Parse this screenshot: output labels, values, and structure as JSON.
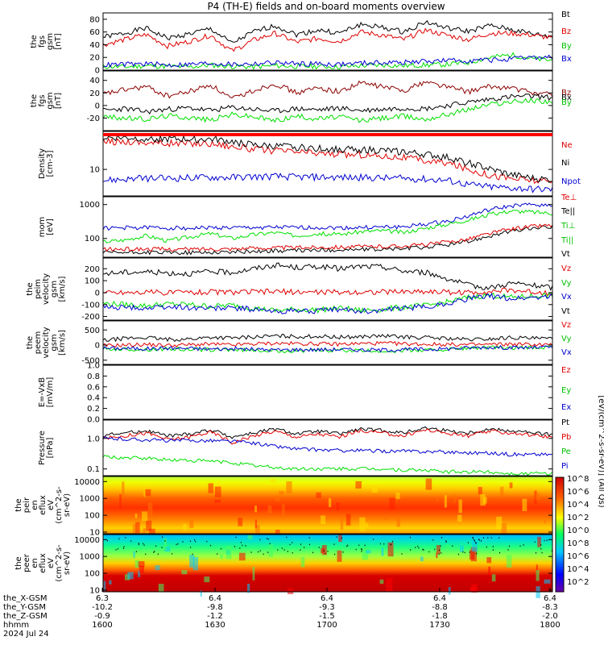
{
  "title": "P4 (TH-E) fields and on-board moments overview",
  "colors": {
    "black": "#000000",
    "red": "#e00000",
    "dark_red": "#8c0000",
    "green": "#00e000",
    "blue": "#0000d0"
  },
  "chart_data": [
    {
      "id": "bgsm",
      "type": "line",
      "ylabel": [
        "the",
        "fgs",
        "gsm",
        "[nT]"
      ],
      "ylim": [
        0,
        90
      ],
      "yticks": [
        "0",
        "20",
        "40",
        "60",
        "80"
      ],
      "legend": [
        "Bt",
        "Bz",
        "By",
        "Bx"
      ],
      "series": [
        {
          "name": "Bt",
          "color": "black",
          "values": [
            52,
            58,
            66,
            50,
            57,
            65,
            42,
            60,
            70,
            56,
            63,
            58,
            72,
            67,
            60,
            76,
            66,
            61,
            70,
            64,
            57,
            52
          ]
        },
        {
          "name": "Bz",
          "color": "red",
          "values": [
            40,
            48,
            56,
            38,
            45,
            55,
            30,
            47,
            58,
            44,
            50,
            45,
            60,
            55,
            48,
            63,
            55,
            48,
            58,
            58,
            55,
            50
          ]
        },
        {
          "name": "By",
          "color": "green",
          "values": [
            6,
            5,
            7,
            6,
            5,
            8,
            6,
            5,
            7,
            6,
            6,
            5,
            7,
            8,
            7,
            8,
            9,
            12,
            20,
            24,
            18,
            15
          ]
        },
        {
          "name": "Bx",
          "color": "blue",
          "values": [
            8,
            9,
            10,
            8,
            9,
            11,
            9,
            10,
            12,
            10,
            10,
            9,
            11,
            12,
            12,
            14,
            15,
            15,
            16,
            17,
            20,
            20
          ]
        }
      ]
    },
    {
      "id": "bgsm2",
      "type": "line",
      "ylabel": [
        "the",
        "fgs",
        "gsm",
        "[nT]"
      ],
      "ylim": [
        -40,
        55
      ],
      "yticks": [
        "-20",
        "0",
        "20",
        "40"
      ],
      "legend": [
        "Bz",
        "Bx",
        "By"
      ],
      "series": [
        {
          "name": "Bz",
          "color": "dark_red",
          "values": [
            18,
            25,
            30,
            15,
            22,
            33,
            10,
            24,
            35,
            20,
            28,
            22,
            36,
            30,
            24,
            38,
            30,
            22,
            30,
            28,
            20,
            18
          ]
        },
        {
          "name": "Bx",
          "color": "black",
          "values": [
            -8,
            -5,
            -10,
            -6,
            -4,
            -8,
            -3,
            -6,
            -9,
            -5,
            -7,
            -4,
            -8,
            -6,
            -4,
            -5,
            0,
            5,
            10,
            14,
            15,
            12
          ]
        },
        {
          "name": "By",
          "color": "green",
          "values": [
            -18,
            -20,
            -22,
            -16,
            -19,
            -23,
            -14,
            -18,
            -24,
            -17,
            -21,
            -18,
            -24,
            -20,
            -17,
            -22,
            -14,
            -6,
            2,
            6,
            8,
            6
          ]
        }
      ]
    },
    {
      "id": "density",
      "type": "line",
      "ylabel": [
        "Density",
        "[cm-3]"
      ],
      "yscale": "log",
      "ylim": [
        3.5,
        45
      ],
      "yticks": [
        "10"
      ],
      "legend": [
        "Ne",
        "Ni",
        "Npot"
      ],
      "series": [
        {
          "name": "Ne",
          "color": "red",
          "values": [
            30,
            30,
            29,
            28,
            28,
            28,
            25,
            22,
            21,
            20,
            19,
            18,
            18,
            17,
            16,
            14,
            13,
            10,
            8,
            7,
            6.5,
            6
          ]
        },
        {
          "name": "Ni",
          "color": "black",
          "values": [
            35,
            35,
            34,
            33,
            33,
            33,
            30,
            26,
            25,
            24,
            23,
            22,
            22,
            21,
            20,
            18,
            16,
            13,
            10,
            8,
            7,
            6.5
          ]
        },
        {
          "name": "Npot",
          "color": "blue",
          "values": [
            6.5,
            6.8,
            7,
            7,
            7.2,
            7.3,
            7.3,
            7.5,
            7.6,
            7.4,
            7.4,
            7.3,
            7.2,
            7.1,
            7,
            6.8,
            6.5,
            5.5,
            5,
            4.8,
            4.6,
            4.5
          ]
        }
      ]
    },
    {
      "id": "temp",
      "type": "line",
      "ylabel": [
        "mom",
        "[eV]"
      ],
      "yscale": "log",
      "ylim": [
        28,
        1700
      ],
      "yticks": [
        "100",
        "1000"
      ],
      "legend": [
        "Te⊥",
        "Te||",
        "Ti⊥",
        "Ti||"
      ],
      "series": [
        {
          "name": "Te⊥",
          "color": "blue",
          "values": [
            200,
            205,
            210,
            205,
            200,
            208,
            205,
            210,
            212,
            208,
            210,
            205,
            210,
            215,
            220,
            260,
            320,
            450,
            700,
            900,
            1000,
            950
          ]
        },
        {
          "name": "Te||",
          "color": "black",
          "values": [
            38,
            38,
            39,
            38,
            38,
            39,
            40,
            42,
            43,
            44,
            45,
            46,
            47,
            48,
            50,
            55,
            65,
            80,
            120,
            160,
            200,
            220
          ]
        },
        {
          "name": "Ti⊥",
          "color": "red",
          "values": [
            48,
            48,
            49,
            48,
            48,
            49,
            50,
            52,
            53,
            54,
            55,
            56,
            57,
            58,
            60,
            66,
            78,
            96,
            140,
            190,
            230,
            250
          ]
        },
        {
          "name": "Ti||",
          "color": "green",
          "values": [
            80,
            90,
            120,
            85,
            110,
            140,
            100,
            130,
            150,
            120,
            140,
            130,
            160,
            170,
            150,
            200,
            260,
            350,
            500,
            650,
            600,
            550
          ]
        }
      ]
    },
    {
      "id": "vel1",
      "type": "line",
      "ylabel": [
        "the",
        "peim",
        "velocity",
        "gsm",
        "[km/s]"
      ],
      "ylim": [
        -230,
        290
      ],
      "yticks": [
        "-200",
        "-100",
        "0",
        "100",
        "200"
      ],
      "legend": [
        "Vt",
        "Vz",
        "Vy",
        "Vx"
      ],
      "series": [
        {
          "name": "Vt",
          "color": "black",
          "values": [
            160,
            170,
            175,
            165,
            160,
            175,
            170,
            200,
            230,
            210,
            220,
            200,
            220,
            215,
            180,
            170,
            120,
            60,
            40,
            80,
            60,
            40
          ]
        },
        {
          "name": "Vz",
          "color": "red",
          "values": [
            0,
            2,
            5,
            0,
            4,
            6,
            3,
            5,
            8,
            6,
            4,
            3,
            6,
            5,
            8,
            10,
            5,
            0,
            10,
            20,
            5,
            0
          ]
        },
        {
          "name": "Vy",
          "color": "green",
          "values": [
            -90,
            -100,
            -110,
            -95,
            -100,
            -115,
            -105,
            -130,
            -150,
            -140,
            -145,
            -130,
            -150,
            -140,
            -120,
            -110,
            -80,
            -40,
            -20,
            -40,
            -30,
            -20
          ]
        },
        {
          "name": "Vx",
          "color": "blue",
          "values": [
            -120,
            -125,
            -130,
            -120,
            -125,
            -130,
            -128,
            -140,
            -160,
            -150,
            -155,
            -140,
            -155,
            -150,
            -130,
            -120,
            -90,
            -50,
            -30,
            -50,
            -40,
            -30
          ]
        }
      ]
    },
    {
      "id": "vel2",
      "type": "line",
      "ylabel": [
        "the",
        "peem",
        "velocity",
        "gsm",
        "[km/s]"
      ],
      "ylim": [
        -640,
        800
      ],
      "yticks": [
        "-500",
        "0",
        "500"
      ],
      "legend": [
        "Vt",
        "Vz",
        "Vy",
        "Vx"
      ],
      "series": [
        {
          "name": "Vt",
          "color": "black",
          "values": [
            150,
            220,
            250,
            180,
            200,
            260,
            230,
            270,
            300,
            280,
            290,
            260,
            280,
            300,
            270,
            250,
            220,
            180,
            200,
            250,
            220,
            200
          ]
        },
        {
          "name": "Vz",
          "color": "red",
          "values": [
            -20,
            0,
            20,
            -10,
            10,
            30,
            0,
            40,
            60,
            50,
            40,
            30,
            50,
            60,
            40,
            30,
            20,
            10,
            20,
            30,
            20,
            10
          ]
        },
        {
          "name": "Vy",
          "color": "green",
          "values": [
            -120,
            -140,
            -150,
            -130,
            -140,
            -160,
            -150,
            -170,
            -200,
            -180,
            -190,
            -170,
            -190,
            -200,
            -180,
            -170,
            -140,
            -100,
            -80,
            -100,
            -90,
            -80
          ]
        },
        {
          "name": "Vx",
          "color": "blue",
          "values": [
            -100,
            -110,
            -120,
            -100,
            -110,
            -130,
            -120,
            -140,
            -160,
            -150,
            -150,
            -140,
            -160,
            -160,
            -150,
            -140,
            -120,
            -90,
            -70,
            -90,
            -80,
            -70
          ]
        }
      ]
    },
    {
      "id": "efield",
      "type": "line",
      "ylabel": [
        "E=-VxB",
        "[mV/m]"
      ],
      "ylim": [
        0,
        1
      ],
      "yticks": [
        "0.0",
        "0.2",
        "0.4",
        "0.6",
        "0.8",
        "1.0"
      ],
      "legend": [
        "Ez",
        "Ey",
        "Ex"
      ],
      "series": []
    },
    {
      "id": "pressure",
      "type": "line",
      "ylabel": [
        "Pressure",
        "[nPa]"
      ],
      "yscale": "log",
      "ylim": [
        0.06,
        4
      ],
      "yticks": [
        "0.1",
        "1.0"
      ],
      "legend": [
        "Pt",
        "Pb",
        "Pe",
        "Pi"
      ],
      "series": [
        {
          "name": "Pt",
          "color": "black",
          "values": [
            1.3,
            1.5,
            1.8,
            1.2,
            1.4,
            1.9,
            1.1,
            1.5,
            2.0,
            1.4,
            1.7,
            1.4,
            2.0,
            1.8,
            1.5,
            2.2,
            1.8,
            1.5,
            2.0,
            1.8,
            1.5,
            1.3
          ]
        },
        {
          "name": "Pb",
          "color": "red",
          "values": [
            1.0,
            1.2,
            1.5,
            0.9,
            1.1,
            1.6,
            0.7,
            1.2,
            1.7,
            1.1,
            1.4,
            1.1,
            1.8,
            1.5,
            1.2,
            1.9,
            1.5,
            1.2,
            1.7,
            1.5,
            1.3,
            1.1
          ]
        },
        {
          "name": "Pe",
          "color": "green",
          "values": [
            0.25,
            0.23,
            0.22,
            0.2,
            0.19,
            0.18,
            0.16,
            0.13,
            0.11,
            0.1,
            0.1,
            0.1,
            0.1,
            0.1,
            0.09,
            0.09,
            0.08,
            0.08,
            0.08,
            0.07,
            0.07,
            0.07
          ]
        },
        {
          "name": "Pi",
          "color": "blue",
          "values": [
            1.0,
            0.95,
            0.9,
            0.85,
            0.85,
            0.85,
            0.8,
            0.7,
            0.55,
            0.45,
            0.42,
            0.4,
            0.4,
            0.38,
            0.38,
            0.37,
            0.36,
            0.34,
            0.33,
            0.3,
            0.3,
            0.3
          ]
        }
      ]
    },
    {
      "id": "peir",
      "type": "heatmap",
      "ylabel": [
        "the",
        "peir",
        "en",
        "eflux",
        "eV",
        "(cm^2-s-",
        "sr-eV)"
      ],
      "yscale": "log",
      "ylim": [
        8,
        20000
      ],
      "yticks": [
        "10",
        "100",
        "1000",
        "10000"
      ]
    },
    {
      "id": "peer",
      "type": "heatmap",
      "ylabel": [
        "the",
        "peer",
        "en",
        "eflux",
        "eV",
        "(cm^2-s-",
        "sr-eV)"
      ],
      "yscale": "log",
      "ylim": [
        8,
        20000
      ],
      "yticks": [
        "10",
        "100",
        "1000",
        "10000"
      ]
    }
  ],
  "colorbar": {
    "tick_labels": [
      "10^8",
      "10^6",
      "10^4",
      "10^2",
      "10^0",
      "10^8",
      "10^6",
      "10^4",
      "10^2"
    ],
    "label": "[eV/(cm^2-s-sr-eV)] (All Qs)"
  },
  "time_axis": {
    "ticks": [
      "1600",
      "1630",
      "1700",
      "1730",
      "1800"
    ],
    "rows": [
      {
        "label": "the_X-GSM",
        "values": [
          "6.3",
          "6.4",
          "6.4",
          "6.4",
          "6.4"
        ]
      },
      {
        "label": "the_Y-GSM",
        "values": [
          "-10.2",
          "-9.8",
          "-9.3",
          "-8.8",
          "-8.3"
        ]
      },
      {
        "label": "the_Z-GSM",
        "values": [
          "-0.9",
          "-1.2",
          "-1.5",
          "-1.8",
          "-2.0"
        ]
      },
      {
        "label": "hhmm",
        "values": [
          "1600",
          "1630",
          "1700",
          "1730",
          "1800"
        ]
      }
    ],
    "date": "2024 Jul 24"
  }
}
